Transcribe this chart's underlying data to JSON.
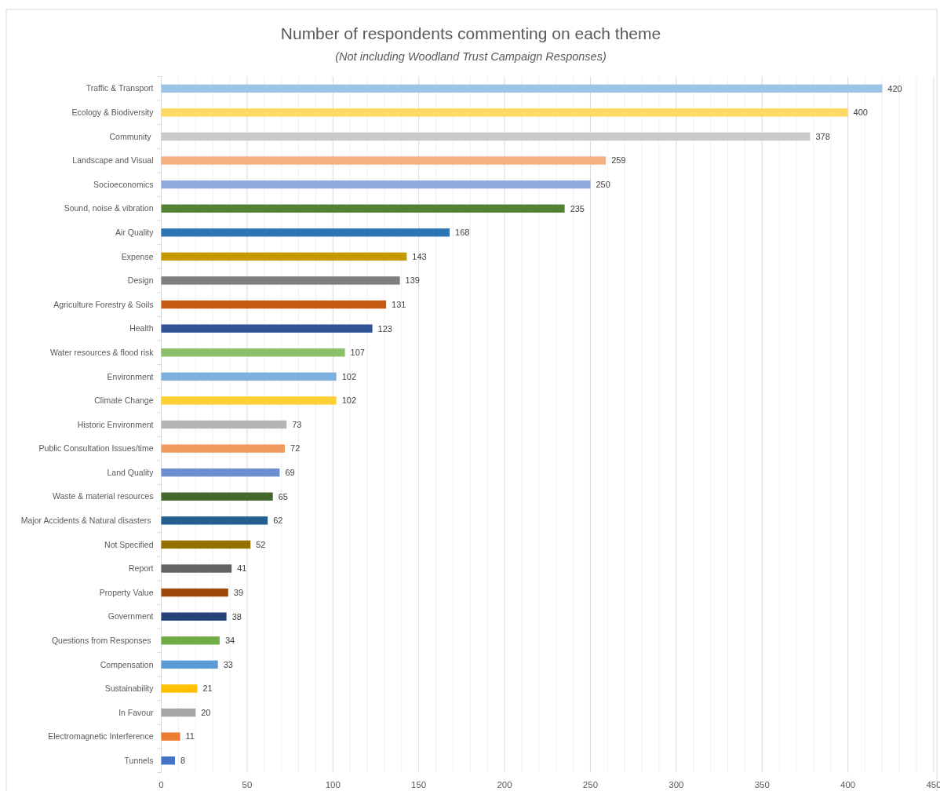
{
  "chart_data": {
    "type": "bar",
    "orientation": "horizontal",
    "title": "Number of respondents commenting on each theme",
    "subtitle": "(Not including Woodland Trust Campaign Responses)",
    "categories": [
      "Traffic & Transport",
      "Ecology & Biodiversity",
      "Community ",
      "Landscape and Visual",
      "Socioeconomics",
      "Sound, noise & vibration",
      "Air Quality",
      "Expense",
      "Design",
      "Agriculture Forestry & Soils",
      "Health",
      "Water resources & flood risk",
      "Environment",
      "Climate Change",
      "Historic Environment",
      "Public Consultation Issues/time",
      "Land Quality",
      "Waste & material resources",
      "Major Accidents & Natural disasters ",
      "Not Specified",
      "Report",
      "Property Value",
      "Government",
      "Questions from Responses ",
      "Compensation",
      "Sustainability",
      "In Favour",
      "Electromagnetic Interference",
      "Tunnels"
    ],
    "values": [
      420,
      400,
      378,
      259,
      250,
      235,
      168,
      143,
      139,
      131,
      123,
      107,
      102,
      102,
      73,
      72,
      69,
      65,
      62,
      52,
      41,
      39,
      38,
      34,
      33,
      21,
      20,
      11,
      8
    ],
    "colors": [
      "#9dc3e6",
      "#ffd966",
      "#c9c9c9",
      "#f4b183",
      "#8faadc",
      "#548235",
      "#2e75b6",
      "#c49a00",
      "#7f7f7f",
      "#c55a11",
      "#2f5597",
      "#8cc068",
      "#7db0dd",
      "#fdd036",
      "#b4b4b4",
      "#f09c60",
      "#6d8fd0",
      "#43682b",
      "#255e91",
      "#937000",
      "#636363",
      "#9e480e",
      "#26447a",
      "#70ad47",
      "#5b9bd5",
      "#ffc000",
      "#a5a5a5",
      "#ed7d31",
      "#4472c4"
    ],
    "xlim": [
      0,
      450
    ],
    "xticks": [
      0,
      {
        "value": 10,
        "label": null
      },
      {
        "value": 20,
        "label": null
      },
      {
        "value": 30,
        "label": null
      },
      {
        "value": 40,
        "label": null
      },
      50,
      {
        "value": 60,
        "label": null
      },
      {
        "value": 70,
        "label": null
      },
      {
        "value": 80,
        "label": null
      },
      {
        "value": 90,
        "label": null
      },
      100,
      {
        "value": 110,
        "label": null
      },
      {
        "value": 120,
        "label": null
      },
      {
        "value": 130,
        "label": null
      },
      {
        "value": 140,
        "label": null
      },
      150,
      {
        "value": 160,
        "label": null
      },
      {
        "value": 170,
        "label": null
      },
      {
        "value": 180,
        "label": null
      },
      {
        "value": 190,
        "label": null
      },
      200,
      {
        "value": 210,
        "label": null
      },
      {
        "value": 220,
        "label": null
      },
      {
        "value": 230,
        "label": null
      },
      {
        "value": 240,
        "label": null
      },
      250,
      {
        "value": 260,
        "label": null
      },
      {
        "value": 270,
        "label": null
      },
      {
        "value": 280,
        "label": null
      },
      {
        "value": 290,
        "label": null
      },
      300,
      {
        "value": 310,
        "label": null
      },
      {
        "value": 320,
        "label": null
      },
      {
        "value": 330,
        "label": null
      },
      {
        "value": 340,
        "label": null
      },
      350,
      {
        "value": 360,
        "label": null
      },
      {
        "value": 370,
        "label": null
      },
      {
        "value": 380,
        "label": null
      },
      {
        "value": 390,
        "label": null
      },
      400,
      {
        "value": 410,
        "label": null
      },
      {
        "value": 420,
        "label": null
      },
      {
        "value": 430,
        "label": null
      },
      {
        "value": 440,
        "label": null
      },
      450
    ],
    "grid": "x",
    "data_labels": true
  }
}
